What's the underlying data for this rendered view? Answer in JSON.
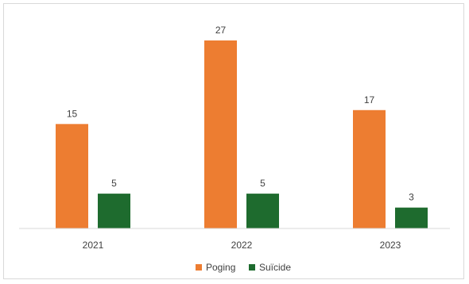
{
  "chart_data": {
    "type": "bar",
    "categories": [
      "2021",
      "2022",
      "2023"
    ],
    "series": [
      {
        "name": "Poging",
        "values": [
          15,
          27,
          17
        ],
        "color": "#ED7D31"
      },
      {
        "name": "Suïcide",
        "values": [
          5,
          5,
          3
        ],
        "color": "#1E6B2E"
      }
    ],
    "ylim": [
      0,
      27
    ],
    "grid": false,
    "legend_position": "bottom",
    "data_labels": true
  }
}
